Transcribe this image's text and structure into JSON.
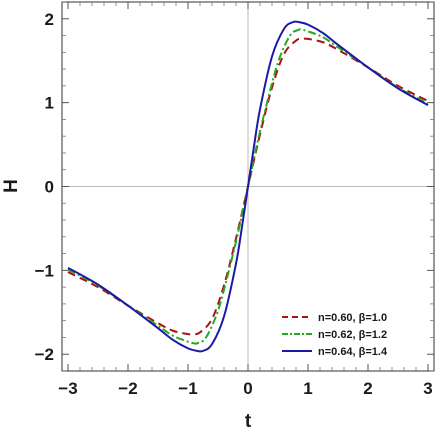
{
  "chart_data": {
    "type": "line",
    "title": "",
    "xlabel": "t",
    "ylabel": "H",
    "xlim": [
      -3.1,
      3.1
    ],
    "ylim": [
      -2.2,
      2.2
    ],
    "xticks": [
      -3,
      -2,
      -1,
      0,
      1,
      2,
      3
    ],
    "xtick_labels": [
      "−3",
      "−2",
      "−1",
      "0",
      "1",
      "2",
      "3"
    ],
    "yticks": [
      -2,
      -1,
      0,
      1,
      2
    ],
    "ytick_labels": [
      "−2",
      "−1",
      "0",
      "1",
      "2"
    ],
    "zero_lines": true,
    "legend_position": "bottom-right",
    "series": [
      {
        "name": "n=0.60, β=1.0",
        "color": "#aa1111",
        "style": "dashed",
        "x": [
          -3,
          -2.5,
          -2,
          -1.5,
          -1.25,
          -1,
          -0.9,
          -0.8,
          -0.6,
          -0.4,
          -0.2,
          0,
          0.2,
          0.4,
          0.6,
          0.8,
          0.9,
          1,
          1.25,
          1.5,
          2,
          2.5,
          3
        ],
        "y": [
          -1.02,
          -1.2,
          -1.42,
          -1.63,
          -1.72,
          -1.76,
          -1.76,
          -1.74,
          -1.58,
          -1.18,
          -0.62,
          0,
          0.62,
          1.18,
          1.58,
          1.74,
          1.76,
          1.76,
          1.72,
          1.63,
          1.42,
          1.2,
          1.02
        ]
      },
      {
        "name": "n=0.62, β=1.2",
        "color": "#22aa22",
        "style": "dashdot",
        "x": [
          -3,
          -2.5,
          -2,
          -1.5,
          -1.25,
          -1,
          -0.9,
          -0.85,
          -0.7,
          -0.5,
          -0.3,
          -0.15,
          0,
          0.15,
          0.3,
          0.5,
          0.7,
          0.85,
          0.9,
          1,
          1.25,
          1.5,
          2,
          2.5,
          3
        ],
        "y": [
          -0.99,
          -1.18,
          -1.42,
          -1.66,
          -1.78,
          -1.85,
          -1.87,
          -1.87,
          -1.8,
          -1.48,
          -0.95,
          -0.5,
          0,
          0.5,
          0.95,
          1.48,
          1.8,
          1.87,
          1.87,
          1.85,
          1.78,
          1.66,
          1.42,
          1.18,
          0.99
        ]
      },
      {
        "name": "n=0.64, β=1.4",
        "color": "#1a1aa6",
        "style": "solid",
        "x": [
          -3,
          -2.5,
          -2,
          -1.5,
          -1.25,
          -1,
          -0.85,
          -0.75,
          -0.6,
          -0.4,
          -0.2,
          -0.1,
          0,
          0.1,
          0.2,
          0.4,
          0.6,
          0.75,
          0.85,
          1,
          1.25,
          1.5,
          2,
          2.5,
          3
        ],
        "y": [
          -0.97,
          -1.17,
          -1.42,
          -1.69,
          -1.83,
          -1.93,
          -1.96,
          -1.96,
          -1.88,
          -1.55,
          -0.92,
          -0.48,
          0,
          0.48,
          0.92,
          1.55,
          1.88,
          1.96,
          1.96,
          1.93,
          1.83,
          1.69,
          1.42,
          1.17,
          0.97
        ]
      }
    ]
  }
}
